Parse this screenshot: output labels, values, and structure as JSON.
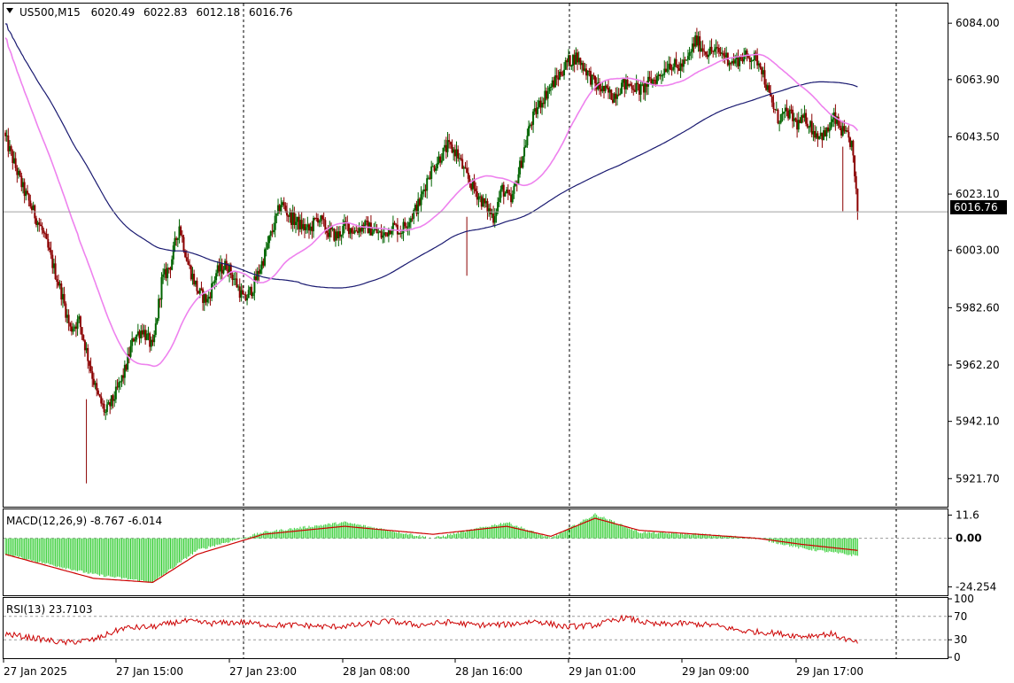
{
  "header": {
    "symbol": "US500,M15",
    "open": "6020.49",
    "high": "6022.83",
    "low": "6012.18",
    "close": "6016.76"
  },
  "main_panel": {
    "price_ticks": [
      "6084.00",
      "6063.90",
      "6043.50",
      "6023.10",
      "6003.00",
      "5982.60",
      "5962.20",
      "5942.10",
      "5921.70"
    ],
    "current_price_label": "6016.76",
    "y_range": [
      5912.0,
      6091.0
    ]
  },
  "macd_panel": {
    "title": "MACD(12,26,9) -8.767 -6.014",
    "ticks": [
      "11.6",
      "0.00",
      "-24.254"
    ]
  },
  "rsi_panel": {
    "title": "RSI(13) 23.7103",
    "ticks": [
      "100",
      "70",
      "30",
      "0"
    ]
  },
  "time_axis": {
    "labels": [
      "27 Jan 2025",
      "27 Jan 15:00",
      "27 Jan 23:00",
      "28 Jan 08:00",
      "28 Jan 16:00",
      "29 Jan 01:00",
      "29 Jan 09:00",
      "29 Jan 17:00"
    ]
  },
  "colors": {
    "bull_candle": "#006400",
    "bear_candle": "#8b0000",
    "ma_fast": "#ee82ee",
    "ma_slow": "#191970",
    "macd_hist": "#32cd32",
    "macd_signal": "#cc0000",
    "rsi_line": "#cc0000",
    "grid": "#000000"
  },
  "chart_data": {
    "type": "candlestick",
    "symbol": "US500",
    "timeframe": "M15",
    "close_path": [
      [
        0,
        6043
      ],
      [
        6,
        6034
      ],
      [
        12,
        6025
      ],
      [
        18,
        6018
      ],
      [
        25,
        6010
      ],
      [
        31,
        6000
      ],
      [
        38,
        5988
      ],
      [
        44,
        5975
      ],
      [
        50,
        5978
      ],
      [
        56,
        5965
      ],
      [
        62,
        5952
      ],
      [
        68,
        5945
      ],
      [
        75,
        5952
      ],
      [
        81,
        5960
      ],
      [
        87,
        5972
      ],
      [
        93,
        5975
      ],
      [
        100,
        5968
      ],
      [
        106,
        5992
      ],
      [
        112,
        5998
      ],
      [
        118,
        6012
      ],
      [
        124,
        5998
      ],
      [
        131,
        5988
      ],
      [
        137,
        5985
      ],
      [
        143,
        5995
      ],
      [
        150,
        5998
      ],
      [
        156,
        5992
      ],
      [
        162,
        5985
      ],
      [
        168,
        5990
      ],
      [
        175,
        6000
      ],
      [
        181,
        6010
      ],
      [
        187,
        6020
      ],
      [
        193,
        6015
      ],
      [
        200,
        6012
      ],
      [
        206,
        6010
      ],
      [
        212,
        6015
      ],
      [
        218,
        6010
      ],
      [
        225,
        6008
      ],
      [
        231,
        6012
      ],
      [
        237,
        6010
      ],
      [
        243,
        6012
      ],
      [
        250,
        6010
      ],
      [
        256,
        6008
      ],
      [
        262,
        6012
      ],
      [
        268,
        6010
      ],
      [
        275,
        6015
      ],
      [
        281,
        6020
      ],
      [
        287,
        6030
      ],
      [
        293,
        6035
      ],
      [
        300,
        6040
      ],
      [
        306,
        6038
      ],
      [
        312,
        6030
      ],
      [
        318,
        6025
      ],
      [
        324,
        6020
      ],
      [
        331,
        6015
      ],
      [
        337,
        6025
      ],
      [
        343,
        6020
      ],
      [
        350,
        6035
      ],
      [
        356,
        6048
      ],
      [
        362,
        6055
      ],
      [
        368,
        6060
      ],
      [
        375,
        6065
      ],
      [
        381,
        6070
      ],
      [
        387,
        6072
      ],
      [
        393,
        6068
      ],
      [
        400,
        6062
      ],
      [
        406,
        6060
      ],
      [
        412,
        6058
      ],
      [
        418,
        6062
      ],
      [
        425,
        6062
      ],
      [
        431,
        6060
      ],
      [
        437,
        6063
      ],
      [
        443,
        6065
      ],
      [
        450,
        6070
      ],
      [
        456,
        6068
      ],
      [
        462,
        6070
      ],
      [
        468,
        6078
      ],
      [
        475,
        6074
      ],
      [
        481,
        6074
      ],
      [
        487,
        6073
      ],
      [
        493,
        6070
      ],
      [
        500,
        6072
      ],
      [
        506,
        6072
      ],
      [
        512,
        6070
      ],
      [
        518,
        6058
      ],
      [
        524,
        6050
      ],
      [
        531,
        6052
      ],
      [
        537,
        6048
      ],
      [
        543,
        6050
      ],
      [
        549,
        6045
      ],
      [
        556,
        6044
      ],
      [
        562,
        6050
      ],
      [
        568,
        6045
      ],
      [
        574,
        6041
      ],
      [
        578,
        6016.76
      ]
    ],
    "macd_hist_path": [
      [
        0,
        -8
      ],
      [
        60,
        -18
      ],
      [
        100,
        -22
      ],
      [
        130,
        -6
      ],
      [
        175,
        3
      ],
      [
        230,
        8
      ],
      [
        290,
        0
      ],
      [
        340,
        8
      ],
      [
        370,
        0
      ],
      [
        400,
        12
      ],
      [
        430,
        3
      ],
      [
        470,
        2
      ],
      [
        510,
        0
      ],
      [
        540,
        -5
      ],
      [
        578,
        -8.767
      ]
    ],
    "macd_signal_path": [
      [
        0,
        -8
      ],
      [
        60,
        -20
      ],
      [
        100,
        -22
      ],
      [
        130,
        -8
      ],
      [
        175,
        2
      ],
      [
        230,
        6
      ],
      [
        290,
        2
      ],
      [
        340,
        6
      ],
      [
        370,
        1
      ],
      [
        400,
        10
      ],
      [
        430,
        4
      ],
      [
        470,
        2
      ],
      [
        510,
        0
      ],
      [
        540,
        -3
      ],
      [
        578,
        -6.014
      ]
    ],
    "rsi_path": [
      [
        0,
        40
      ],
      [
        40,
        25
      ],
      [
        60,
        30
      ],
      [
        80,
        50
      ],
      [
        100,
        52
      ],
      [
        120,
        62
      ],
      [
        140,
        58
      ],
      [
        160,
        60
      ],
      [
        180,
        55
      ],
      [
        200,
        55
      ],
      [
        220,
        52
      ],
      [
        240,
        55
      ],
      [
        260,
        62
      ],
      [
        280,
        55
      ],
      [
        300,
        60
      ],
      [
        320,
        55
      ],
      [
        340,
        56
      ],
      [
        360,
        62
      ],
      [
        380,
        52
      ],
      [
        400,
        55
      ],
      [
        420,
        68
      ],
      [
        440,
        56
      ],
      [
        460,
        58
      ],
      [
        480,
        55
      ],
      [
        500,
        45
      ],
      [
        520,
        42
      ],
      [
        540,
        36
      ],
      [
        560,
        40
      ],
      [
        578,
        23.7103
      ]
    ]
  }
}
